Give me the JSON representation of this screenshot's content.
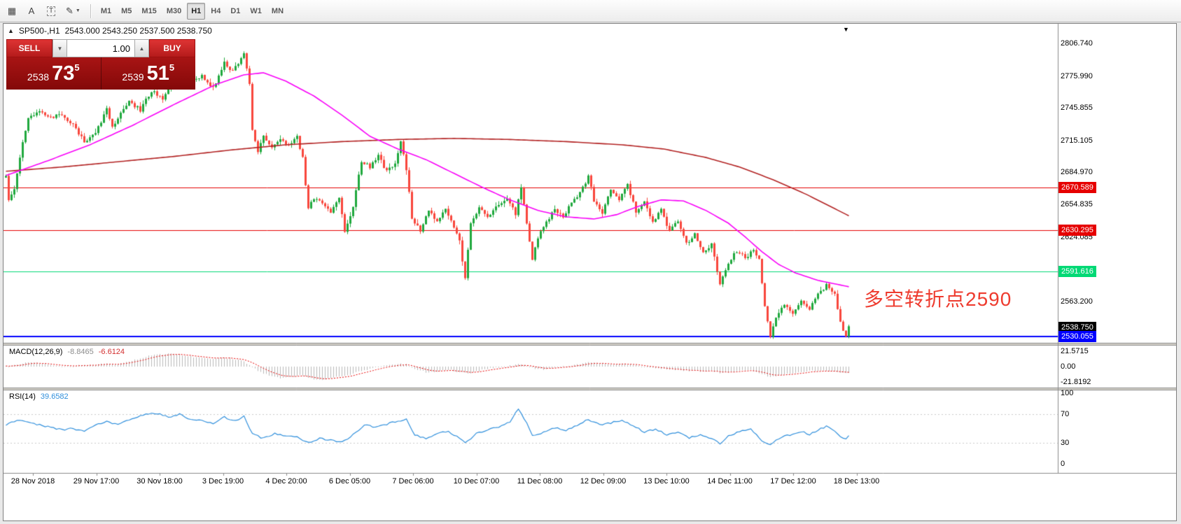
{
  "toolbar": {
    "icons": {
      "grid": "▦",
      "label": "A",
      "textbox": "T",
      "draw": "✎",
      "caret": "▼"
    },
    "timeframes": [
      "M1",
      "M5",
      "M15",
      "M30",
      "H1",
      "H4",
      "D1",
      "W1",
      "MN"
    ],
    "active_timeframe": "H1"
  },
  "chart": {
    "collapse_marker": "▲",
    "symbol": "SP500-,H1",
    "ohlc": "2543.000 2543.250 2537.500 2538.750",
    "bar_shift_marker": "▼",
    "annotation": {
      "text": "多空转折点2590",
      "color": "#ee3b2e"
    }
  },
  "trade_panel": {
    "sell_label": "SELL",
    "buy_label": "BUY",
    "volume": "1.00",
    "spin_down": "▼",
    "spin_up": "▲",
    "sell_price": {
      "stem": "2538",
      "big": "73",
      "sup": "5"
    },
    "buy_price": {
      "stem": "2539",
      "big": "51",
      "sup": "5"
    }
  },
  "indicators": {
    "macd": {
      "name": "MACD(12,26,9)",
      "value_main": "-8.8465",
      "value_signal": "-6.6124",
      "scale": [
        {
          "label": "21.5715",
          "value": 21.5715
        },
        {
          "label": "0.00",
          "value": 0
        },
        {
          "label": "-21.8192",
          "value": -21.8192
        }
      ]
    },
    "rsi": {
      "name": "RSI(14)",
      "value": "39.6582",
      "scale": [
        {
          "label": "100",
          "value": 100
        },
        {
          "label": "70",
          "value": 70
        },
        {
          "label": "30",
          "value": 30
        },
        {
          "label": "0",
          "value": 0
        }
      ]
    }
  },
  "price_axis": {
    "ticks": [
      2806.74,
      2775.99,
      2745.855,
      2715.105,
      2684.97,
      2654.835,
      2624.085,
      2563.2
    ],
    "levels": [
      {
        "label": "2670.589",
        "value": 2670.589,
        "color": "#e60000",
        "line_width": 1
      },
      {
        "label": "2630.295",
        "value": 2630.295,
        "color": "#e60000",
        "line_width": 1
      },
      {
        "label": "2591.616",
        "value": 2591.616,
        "color": "#00d975",
        "line_width": 1
      },
      {
        "label": "2538.750",
        "value": 2538.75,
        "color": "#000000",
        "line_width": 0
      },
      {
        "label": "2530.055",
        "value": 2530.055,
        "color": "#0000ff",
        "line_width": 2
      }
    ]
  },
  "time_axis": {
    "labels": [
      "28 Nov 2018",
      "29 Nov 17:00",
      "30 Nov 18:00",
      "3 Dec 19:00",
      "4 Dec 20:00",
      "6 Dec 05:00",
      "7 Dec 06:00",
      "10 Dec 07:00",
      "11 Dec 08:00",
      "12 Dec 09:00",
      "13 Dec 10:00",
      "14 Dec 11:00",
      "17 Dec 12:00",
      "18 Dec 13:00"
    ]
  },
  "chart_data": {
    "type": "candlestick",
    "symbol": "SP500-",
    "timeframe": "H1",
    "bars": 302,
    "visible_price_range": [
      2524.1,
      2825.2
    ],
    "colors": {
      "up": "#1fa83d",
      "down": "#f8463c",
      "ma_fast": "#f800f8",
      "ma_slow": "#b22222",
      "macd_hist": "#b8b8b8",
      "macd_signal": "#e60000",
      "rsi": "#2f8fdc"
    },
    "price_anchors": [
      [
        0,
        2680
      ],
      [
        1,
        2658
      ],
      [
        3,
        2668
      ],
      [
        5,
        2700
      ],
      [
        8,
        2736
      ],
      [
        12,
        2742
      ],
      [
        16,
        2736
      ],
      [
        20,
        2740
      ],
      [
        24,
        2730
      ],
      [
        28,
        2714
      ],
      [
        32,
        2722
      ],
      [
        36,
        2744
      ],
      [
        38,
        2728
      ],
      [
        41,
        2740
      ],
      [
        44,
        2752
      ],
      [
        48,
        2744
      ],
      [
        52,
        2762
      ],
      [
        56,
        2755
      ],
      [
        60,
        2770
      ],
      [
        63,
        2778
      ],
      [
        66,
        2770
      ],
      [
        70,
        2776
      ],
      [
        74,
        2764
      ],
      [
        78,
        2788
      ],
      [
        81,
        2780
      ],
      [
        85,
        2796
      ],
      [
        87,
        2768
      ],
      [
        88,
        2726
      ],
      [
        90,
        2704
      ],
      [
        92,
        2718
      ],
      [
        95,
        2710
      ],
      [
        98,
        2716
      ],
      [
        101,
        2710
      ],
      [
        104,
        2719
      ],
      [
        106,
        2698
      ],
      [
        108,
        2650
      ],
      [
        110,
        2661
      ],
      [
        113,
        2657
      ],
      [
        116,
        2646
      ],
      [
        119,
        2660
      ],
      [
        121,
        2628
      ],
      [
        124,
        2652
      ],
      [
        127,
        2696
      ],
      [
        130,
        2690
      ],
      [
        133,
        2700
      ],
      [
        136,
        2686
      ],
      [
        139,
        2694
      ],
      [
        141,
        2714
      ],
      [
        143,
        2688
      ],
      [
        145,
        2642
      ],
      [
        148,
        2630
      ],
      [
        151,
        2648
      ],
      [
        154,
        2638
      ],
      [
        157,
        2650
      ],
      [
        160,
        2632
      ],
      [
        162,
        2620
      ],
      [
        164,
        2584
      ],
      [
        166,
        2638
      ],
      [
        169,
        2652
      ],
      [
        172,
        2643
      ],
      [
        176,
        2654
      ],
      [
        179,
        2661
      ],
      [
        182,
        2646
      ],
      [
        184,
        2671
      ],
      [
        186,
        2638
      ],
      [
        188,
        2601
      ],
      [
        190,
        2624
      ],
      [
        193,
        2637
      ],
      [
        196,
        2651
      ],
      [
        199,
        2641
      ],
      [
        202,
        2657
      ],
      [
        205,
        2666
      ],
      [
        208,
        2681
      ],
      [
        210,
        2659
      ],
      [
        213,
        2647
      ],
      [
        216,
        2669
      ],
      [
        219,
        2660
      ],
      [
        222,
        2674
      ],
      [
        225,
        2647
      ],
      [
        228,
        2657
      ],
      [
        231,
        2639
      ],
      [
        234,
        2649
      ],
      [
        237,
        2629
      ],
      [
        240,
        2639
      ],
      [
        243,
        2617
      ],
      [
        246,
        2627
      ],
      [
        249,
        2609
      ],
      [
        252,
        2617
      ],
      [
        255,
        2579
      ],
      [
        258,
        2599
      ],
      [
        261,
        2611
      ],
      [
        264,
        2604
      ],
      [
        267,
        2612
      ],
      [
        269,
        2604
      ],
      [
        271,
        2560
      ],
      [
        273,
        2531
      ],
      [
        275,
        2549
      ],
      [
        278,
        2559
      ],
      [
        281,
        2551
      ],
      [
        284,
        2564
      ],
      [
        287,
        2557
      ],
      [
        290,
        2571
      ],
      [
        293,
        2578
      ],
      [
        296,
        2569
      ],
      [
        298,
        2545
      ],
      [
        300,
        2529
      ],
      [
        301,
        2539
      ]
    ],
    "ma_fast_anchors": [
      [
        0,
        2682
      ],
      [
        15,
        2696
      ],
      [
        30,
        2711
      ],
      [
        45,
        2729
      ],
      [
        60,
        2749
      ],
      [
        75,
        2768
      ],
      [
        85,
        2777
      ],
      [
        92,
        2779
      ],
      [
        100,
        2771
      ],
      [
        110,
        2757
      ],
      [
        120,
        2739
      ],
      [
        130,
        2719
      ],
      [
        140,
        2707
      ],
      [
        150,
        2697
      ],
      [
        160,
        2684
      ],
      [
        170,
        2671
      ],
      [
        180,
        2659
      ],
      [
        190,
        2649
      ],
      [
        200,
        2643
      ],
      [
        210,
        2641
      ],
      [
        218,
        2645
      ],
      [
        226,
        2653
      ],
      [
        234,
        2659
      ],
      [
        242,
        2658
      ],
      [
        250,
        2649
      ],
      [
        258,
        2637
      ],
      [
        264,
        2624
      ],
      [
        270,
        2610
      ],
      [
        276,
        2598
      ],
      [
        282,
        2590
      ],
      [
        290,
        2583
      ],
      [
        301,
        2577
      ]
    ],
    "ma_slow_anchors": [
      [
        0,
        2686
      ],
      [
        20,
        2690
      ],
      [
        40,
        2695
      ],
      [
        60,
        2700
      ],
      [
        80,
        2706
      ],
      [
        100,
        2711
      ],
      [
        120,
        2714
      ],
      [
        140,
        2716
      ],
      [
        160,
        2717
      ],
      [
        180,
        2716
      ],
      [
        200,
        2714
      ],
      [
        220,
        2711
      ],
      [
        235,
        2707
      ],
      [
        250,
        2699
      ],
      [
        262,
        2690
      ],
      [
        274,
        2678
      ],
      [
        286,
        2664
      ],
      [
        295,
        2652
      ],
      [
        301,
        2644
      ]
    ],
    "macd": {
      "range": [
        -30,
        30
      ],
      "anchors": [
        [
          0,
          0
        ],
        [
          4,
          3
        ],
        [
          8,
          6
        ],
        [
          12,
          5
        ],
        [
          16,
          3
        ],
        [
          20,
          1
        ],
        [
          24,
          1
        ],
        [
          28,
          2
        ],
        [
          32,
          3
        ],
        [
          36,
          4
        ],
        [
          40,
          3
        ],
        [
          44,
          7
        ],
        [
          48,
          12
        ],
        [
          52,
          16
        ],
        [
          56,
          18
        ],
        [
          60,
          19
        ],
        [
          64,
          16
        ],
        [
          68,
          13
        ],
        [
          72,
          11
        ],
        [
          76,
          12
        ],
        [
          80,
          12
        ],
        [
          84,
          9
        ],
        [
          87,
          3
        ],
        [
          90,
          -6
        ],
        [
          94,
          -13
        ],
        [
          98,
          -17
        ],
        [
          102,
          -15
        ],
        [
          105,
          -12
        ],
        [
          108,
          -16
        ],
        [
          112,
          -19
        ],
        [
          116,
          -16
        ],
        [
          120,
          -14
        ],
        [
          124,
          -10
        ],
        [
          128,
          -5
        ],
        [
          132,
          -1
        ],
        [
          136,
          2
        ],
        [
          140,
          4
        ],
        [
          143,
          3
        ],
        [
          146,
          -3
        ],
        [
          150,
          -8
        ],
        [
          154,
          -7
        ],
        [
          158,
          -4
        ],
        [
          162,
          -8
        ],
        [
          165,
          -10
        ],
        [
          168,
          -7
        ],
        [
          172,
          -3
        ],
        [
          176,
          -1
        ],
        [
          180,
          1
        ],
        [
          184,
          4
        ],
        [
          188,
          -2
        ],
        [
          192,
          -4
        ],
        [
          196,
          -1
        ],
        [
          200,
          1
        ],
        [
          204,
          3
        ],
        [
          208,
          6
        ],
        [
          212,
          5
        ],
        [
          216,
          3
        ],
        [
          220,
          4
        ],
        [
          224,
          2
        ],
        [
          228,
          0
        ],
        [
          232,
          -2
        ],
        [
          236,
          -4
        ],
        [
          240,
          -5
        ],
        [
          244,
          -6
        ],
        [
          248,
          -7
        ],
        [
          252,
          -6
        ],
        [
          255,
          -9
        ],
        [
          258,
          -8
        ],
        [
          262,
          -6
        ],
        [
          266,
          -5
        ],
        [
          270,
          -10
        ],
        [
          273,
          -15
        ],
        [
          276,
          -13
        ],
        [
          280,
          -10
        ],
        [
          284,
          -8
        ],
        [
          288,
          -6
        ],
        [
          292,
          -5
        ],
        [
          296,
          -7
        ],
        [
          299,
          -9
        ],
        [
          301,
          -8.85
        ]
      ]
    },
    "rsi": {
      "range": [
        -13,
        104
      ],
      "levels": [
        70,
        30
      ],
      "anchors": [
        [
          0,
          55
        ],
        [
          4,
          62
        ],
        [
          8,
          58
        ],
        [
          12,
          55
        ],
        [
          16,
          52
        ],
        [
          20,
          48
        ],
        [
          24,
          50
        ],
        [
          28,
          46
        ],
        [
          32,
          55
        ],
        [
          36,
          60
        ],
        [
          40,
          55
        ],
        [
          44,
          62
        ],
        [
          48,
          68
        ],
        [
          52,
          72
        ],
        [
          55,
          70
        ],
        [
          58,
          66
        ],
        [
          62,
          70
        ],
        [
          66,
          63
        ],
        [
          70,
          61
        ],
        [
          74,
          57
        ],
        [
          78,
          66
        ],
        [
          82,
          61
        ],
        [
          85,
          67
        ],
        [
          88,
          42
        ],
        [
          92,
          36
        ],
        [
          96,
          43
        ],
        [
          100,
          40
        ],
        [
          104,
          38
        ],
        [
          108,
          30
        ],
        [
          112,
          36
        ],
        [
          116,
          33
        ],
        [
          120,
          31
        ],
        [
          124,
          41
        ],
        [
          128,
          55
        ],
        [
          132,
          52
        ],
        [
          136,
          56
        ],
        [
          140,
          61
        ],
        [
          143,
          63
        ],
        [
          146,
          41
        ],
        [
          150,
          36
        ],
        [
          154,
          43
        ],
        [
          158,
          46
        ],
        [
          162,
          36
        ],
        [
          164,
          29
        ],
        [
          168,
          43
        ],
        [
          172,
          48
        ],
        [
          176,
          52
        ],
        [
          180,
          60
        ],
        [
          183,
          78
        ],
        [
          186,
          58
        ],
        [
          188,
          39
        ],
        [
          192,
          45
        ],
        [
          196,
          51
        ],
        [
          200,
          47
        ],
        [
          204,
          55
        ],
        [
          208,
          63
        ],
        [
          212,
          55
        ],
        [
          216,
          58
        ],
        [
          220,
          61
        ],
        [
          224,
          54
        ],
        [
          228,
          45
        ],
        [
          232,
          49
        ],
        [
          236,
          41
        ],
        [
          240,
          45
        ],
        [
          244,
          37
        ],
        [
          248,
          41
        ],
        [
          252,
          35
        ],
        [
          255,
          29
        ],
        [
          258,
          39
        ],
        [
          262,
          46
        ],
        [
          266,
          49
        ],
        [
          270,
          33
        ],
        [
          273,
          26
        ],
        [
          276,
          36
        ],
        [
          280,
          41
        ],
        [
          284,
          46
        ],
        [
          287,
          41
        ],
        [
          290,
          48
        ],
        [
          293,
          53
        ],
        [
          296,
          45
        ],
        [
          298,
          39
        ],
        [
          300,
          34
        ],
        [
          301,
          39.66
        ]
      ]
    }
  }
}
